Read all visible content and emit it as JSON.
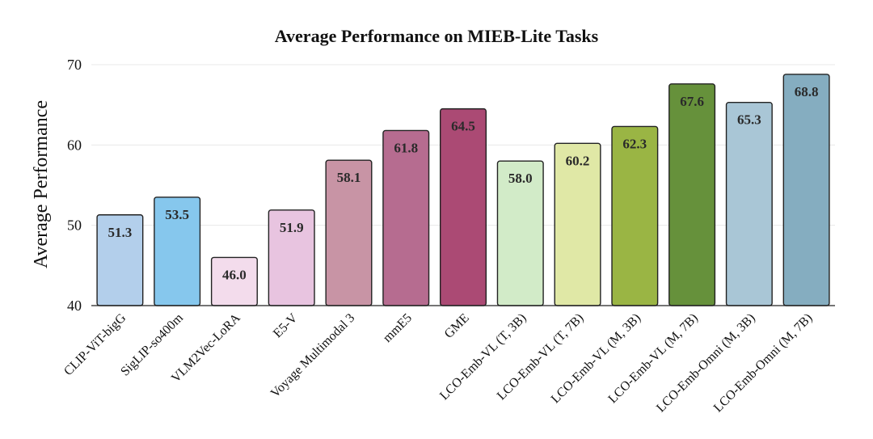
{
  "chart_data": {
    "type": "bar",
    "title": "Average Performance on MIEB-Lite Tasks",
    "xlabel": "",
    "ylabel": "Average Performance",
    "ylim": [
      40,
      70
    ],
    "yticks": [
      40,
      50,
      60,
      70
    ],
    "grid": true,
    "legend": "none",
    "categories": [
      "CLIP-ViT-bigG",
      "SigLIP-so400m",
      "VLM2Vec-LoRA",
      "E5-V",
      "Voyage Multimodal 3",
      "mmE5",
      "GME",
      "LCO-Emb-VL (T, 3B)",
      "LCO-Emb-VL (T, 7B)",
      "LCO-Emb-VL (M, 3B)",
      "LCO-Emb-VL (M, 7B)",
      "LCO-Emb-Omni (M, 3B)",
      "LCO-Emb-Omni (M, 7B)"
    ],
    "values": [
      51.3,
      53.5,
      46.0,
      51.9,
      58.1,
      61.8,
      64.5,
      58.0,
      60.2,
      62.3,
      67.6,
      65.3,
      68.8
    ],
    "value_labels": [
      "51.3",
      "53.5",
      "46.0",
      "51.9",
      "58.1",
      "61.8",
      "64.5",
      "58.0",
      "60.2",
      "62.3",
      "67.6",
      "65.3",
      "68.8"
    ],
    "colors": [
      "#b3cfeb",
      "#86c7ed",
      "#f3dcec",
      "#e8c4e0",
      "#c894a5",
      "#b66c90",
      "#ab4a74",
      "#d2ebc8",
      "#e0e8a6",
      "#9ab544",
      "#66913b",
      "#a9c6d6",
      "#85adc0"
    ]
  }
}
